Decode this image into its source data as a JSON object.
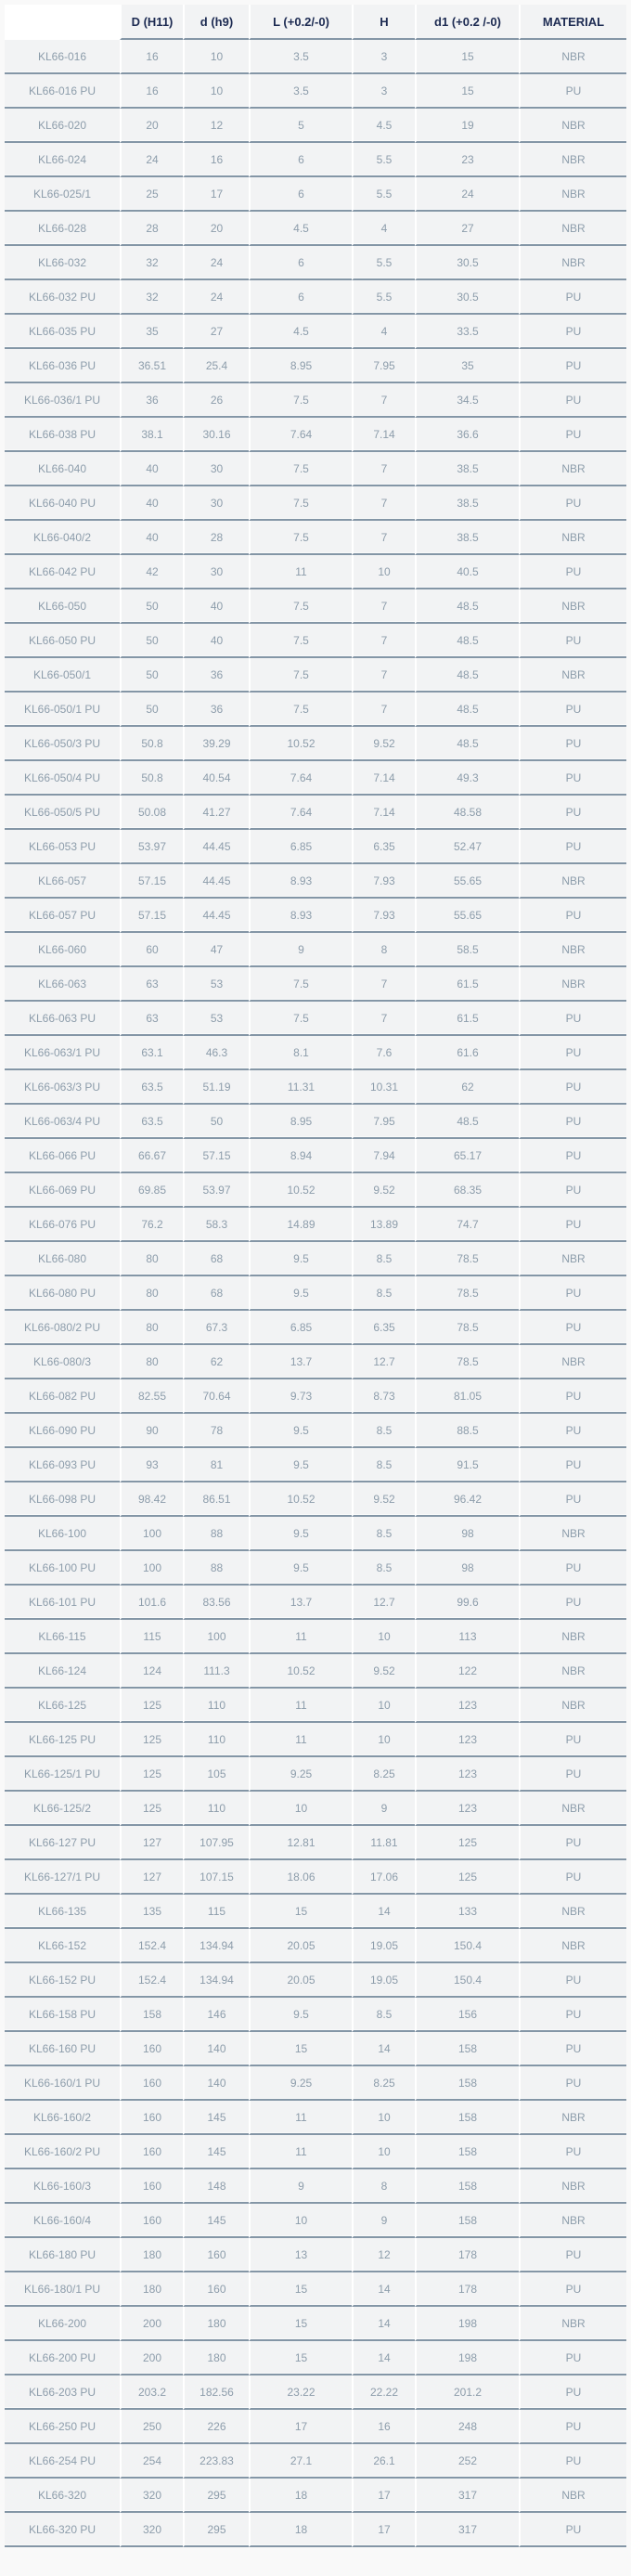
{
  "colors": {
    "border": "#8496a6",
    "cell_background": "#f2f3f4",
    "cell_text": "#8d9dab",
    "header_text": "#1d2b52",
    "first_header_cell_background": "#ffffff"
  },
  "table": {
    "columns": [
      "",
      "D (H11)",
      "d (h9)",
      "L (+0.2/-0)",
      "H",
      "d1 (+0.2 /-0)",
      "MATERIAL"
    ],
    "column_keys": [
      "part_number",
      "D_H11",
      "d_h9",
      "L",
      "H",
      "d1",
      "material"
    ],
    "rows": [
      [
        "KL66-016",
        "16",
        "10",
        "3.5",
        "3",
        "15",
        "NBR"
      ],
      [
        "KL66-016 PU",
        "16",
        "10",
        "3.5",
        "3",
        "15",
        "PU"
      ],
      [
        "KL66-020",
        "20",
        "12",
        "5",
        "4.5",
        "19",
        "NBR"
      ],
      [
        "KL66-024",
        "24",
        "16",
        "6",
        "5.5",
        "23",
        "NBR"
      ],
      [
        "KL66-025/1",
        "25",
        "17",
        "6",
        "5.5",
        "24",
        "NBR"
      ],
      [
        "KL66-028",
        "28",
        "20",
        "4.5",
        "4",
        "27",
        "NBR"
      ],
      [
        "KL66-032",
        "32",
        "24",
        "6",
        "5.5",
        "30.5",
        "NBR"
      ],
      [
        "KL66-032 PU",
        "32",
        "24",
        "6",
        "5.5",
        "30.5",
        "PU"
      ],
      [
        "KL66-035 PU",
        "35",
        "27",
        "4.5",
        "4",
        "33.5",
        "PU"
      ],
      [
        "KL66-036 PU",
        "36.51",
        "25.4",
        "8.95",
        "7.95",
        "35",
        "PU"
      ],
      [
        "KL66-036/1 PU",
        "36",
        "26",
        "7.5",
        "7",
        "34.5",
        "PU"
      ],
      [
        "KL66-038 PU",
        "38.1",
        "30.16",
        "7.64",
        "7.14",
        "36.6",
        "PU"
      ],
      [
        "KL66-040",
        "40",
        "30",
        "7.5",
        "7",
        "38.5",
        "NBR"
      ],
      [
        "KL66-040 PU",
        "40",
        "30",
        "7.5",
        "7",
        "38.5",
        "PU"
      ],
      [
        "KL66-040/2",
        "40",
        "28",
        "7.5",
        "7",
        "38.5",
        "NBR"
      ],
      [
        "KL66-042 PU",
        "42",
        "30",
        "11",
        "10",
        "40.5",
        "PU"
      ],
      [
        "KL66-050",
        "50",
        "40",
        "7.5",
        "7",
        "48.5",
        "NBR"
      ],
      [
        "KL66-050 PU",
        "50",
        "40",
        "7.5",
        "7",
        "48.5",
        "PU"
      ],
      [
        "KL66-050/1",
        "50",
        "36",
        "7.5",
        "7",
        "48.5",
        "NBR"
      ],
      [
        "KL66-050/1 PU",
        "50",
        "36",
        "7.5",
        "7",
        "48.5",
        "PU"
      ],
      [
        "KL66-050/3 PU",
        "50.8",
        "39.29",
        "10.52",
        "9.52",
        "48.5",
        "PU"
      ],
      [
        "KL66-050/4 PU",
        "50.8",
        "40.54",
        "7.64",
        "7.14",
        "49.3",
        "PU"
      ],
      [
        "KL66-050/5 PU",
        "50.08",
        "41.27",
        "7.64",
        "7.14",
        "48.58",
        "PU"
      ],
      [
        "KL66-053 PU",
        "53.97",
        "44.45",
        "6.85",
        "6.35",
        "52.47",
        "PU"
      ],
      [
        "KL66-057",
        "57.15",
        "44.45",
        "8.93",
        "7.93",
        "55.65",
        "NBR"
      ],
      [
        "KL66-057 PU",
        "57.15",
        "44.45",
        "8.93",
        "7.93",
        "55.65",
        "PU"
      ],
      [
        "KL66-060",
        "60",
        "47",
        "9",
        "8",
        "58.5",
        "NBR"
      ],
      [
        "KL66-063",
        "63",
        "53",
        "7.5",
        "7",
        "61.5",
        "NBR"
      ],
      [
        "KL66-063 PU",
        "63",
        "53",
        "7.5",
        "7",
        "61.5",
        "PU"
      ],
      [
        "KL66-063/1 PU",
        "63.1",
        "46.3",
        "8.1",
        "7.6",
        "61.6",
        "PU"
      ],
      [
        "KL66-063/3 PU",
        "63.5",
        "51.19",
        "11.31",
        "10.31",
        "62",
        "PU"
      ],
      [
        "KL66-063/4 PU",
        "63.5",
        "50",
        "8.95",
        "7.95",
        "48.5",
        "PU"
      ],
      [
        "KL66-066 PU",
        "66.67",
        "57.15",
        "8.94",
        "7.94",
        "65.17",
        "PU"
      ],
      [
        "KL66-069 PU",
        "69.85",
        "53.97",
        "10.52",
        "9.52",
        "68.35",
        "PU"
      ],
      [
        "KL66-076 PU",
        "76.2",
        "58.3",
        "14.89",
        "13.89",
        "74.7",
        "PU"
      ],
      [
        "KL66-080",
        "80",
        "68",
        "9.5",
        "8.5",
        "78.5",
        "NBR"
      ],
      [
        "KL66-080 PU",
        "80",
        "68",
        "9.5",
        "8.5",
        "78.5",
        "PU"
      ],
      [
        "KL66-080/2 PU",
        "80",
        "67.3",
        "6.85",
        "6.35",
        "78.5",
        "PU"
      ],
      [
        "KL66-080/3",
        "80",
        "62",
        "13.7",
        "12.7",
        "78.5",
        "NBR"
      ],
      [
        "KL66-082 PU",
        "82.55",
        "70.64",
        "9.73",
        "8.73",
        "81.05",
        "PU"
      ],
      [
        "KL66-090 PU",
        "90",
        "78",
        "9.5",
        "8.5",
        "88.5",
        "PU"
      ],
      [
        "KL66-093 PU",
        "93",
        "81",
        "9.5",
        "8.5",
        "91.5",
        "PU"
      ],
      [
        "KL66-098 PU",
        "98.42",
        "86.51",
        "10.52",
        "9.52",
        "96.42",
        "PU"
      ],
      [
        "KL66-100",
        "100",
        "88",
        "9.5",
        "8.5",
        "98",
        "NBR"
      ],
      [
        "KL66-100 PU",
        "100",
        "88",
        "9.5",
        "8.5",
        "98",
        "PU"
      ],
      [
        "KL66-101 PU",
        "101.6",
        "83.56",
        "13.7",
        "12.7",
        "99.6",
        "PU"
      ],
      [
        "KL66-115",
        "115",
        "100",
        "11",
        "10",
        "113",
        "NBR"
      ],
      [
        "KL66-124",
        "124",
        "111.3",
        "10.52",
        "9.52",
        "122",
        "NBR"
      ],
      [
        "KL66-125",
        "125",
        "110",
        "11",
        "10",
        "123",
        "NBR"
      ],
      [
        "KL66-125 PU",
        "125",
        "110",
        "11",
        "10",
        "123",
        "PU"
      ],
      [
        "KL66-125/1 PU",
        "125",
        "105",
        "9.25",
        "8.25",
        "123",
        "PU"
      ],
      [
        "KL66-125/2",
        "125",
        "110",
        "10",
        "9",
        "123",
        "NBR"
      ],
      [
        "KL66-127 PU",
        "127",
        "107.95",
        "12.81",
        "11.81",
        "125",
        "PU"
      ],
      [
        "KL66-127/1 PU",
        "127",
        "107.15",
        "18.06",
        "17.06",
        "125",
        "PU"
      ],
      [
        "KL66-135",
        "135",
        "115",
        "15",
        "14",
        "133",
        "NBR"
      ],
      [
        "KL66-152",
        "152.4",
        "134.94",
        "20.05",
        "19.05",
        "150.4",
        "NBR"
      ],
      [
        "KL66-152 PU",
        "152.4",
        "134.94",
        "20.05",
        "19.05",
        "150.4",
        "PU"
      ],
      [
        "KL66-158 PU",
        "158",
        "146",
        "9.5",
        "8.5",
        "156",
        "PU"
      ],
      [
        "KL66-160 PU",
        "160",
        "140",
        "15",
        "14",
        "158",
        "PU"
      ],
      [
        "KL66-160/1 PU",
        "160",
        "140",
        "9.25",
        "8.25",
        "158",
        "PU"
      ],
      [
        "KL66-160/2",
        "160",
        "145",
        "11",
        "10",
        "158",
        "NBR"
      ],
      [
        "KL66-160/2 PU",
        "160",
        "145",
        "11",
        "10",
        "158",
        "PU"
      ],
      [
        "KL66-160/3",
        "160",
        "148",
        "9",
        "8",
        "158",
        "NBR"
      ],
      [
        "KL66-160/4",
        "160",
        "145",
        "10",
        "9",
        "158",
        "NBR"
      ],
      [
        "KL66-180 PU",
        "180",
        "160",
        "13",
        "12",
        "178",
        "PU"
      ],
      [
        "KL66-180/1 PU",
        "180",
        "160",
        "15",
        "14",
        "178",
        "PU"
      ],
      [
        "KL66-200",
        "200",
        "180",
        "15",
        "14",
        "198",
        "NBR"
      ],
      [
        "KL66-200 PU",
        "200",
        "180",
        "15",
        "14",
        "198",
        "PU"
      ],
      [
        "KL66-203 PU",
        "203.2",
        "182.56",
        "23.22",
        "22.22",
        "201.2",
        "PU"
      ],
      [
        "KL66-250 PU",
        "250",
        "226",
        "17",
        "16",
        "248",
        "PU"
      ],
      [
        "KL66-254 PU",
        "254",
        "223.83",
        "27.1",
        "26.1",
        "252",
        "PU"
      ],
      [
        "KL66-320",
        "320",
        "295",
        "18",
        "17",
        "317",
        "NBR"
      ],
      [
        "KL66-320 PU",
        "320",
        "295",
        "18",
        "17",
        "317",
        "PU"
      ]
    ]
  }
}
